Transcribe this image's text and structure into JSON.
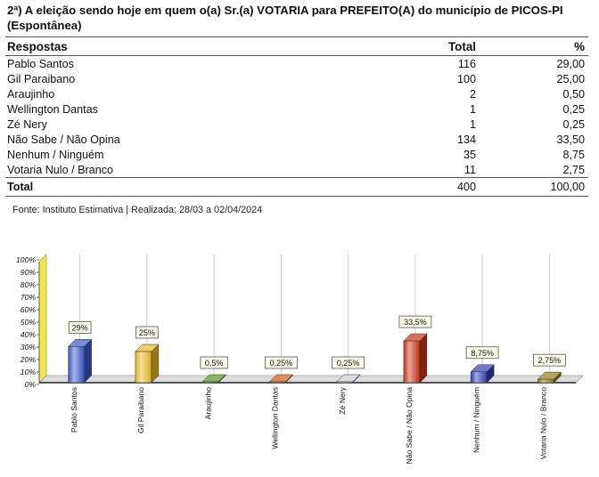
{
  "title": "2ª) A eleição sendo hoje em quem o(a) Sr.(a) VOTARIA para PREFEITO(A) do município de PICOS-PI (Espontânea)",
  "table": {
    "headers": [
      "Respostas",
      "Total",
      "%"
    ],
    "rows": [
      {
        "label": "Pablo Santos",
        "total": "116",
        "pct": "29,00"
      },
      {
        "label": "Gil Paraibano",
        "total": "100",
        "pct": "25,00"
      },
      {
        "label": "Araujinho",
        "total": "2",
        "pct": "0,50"
      },
      {
        "label": "Wellington Dantas",
        "total": "1",
        "pct": "0,25"
      },
      {
        "label": "Zé Nery",
        "total": "1",
        "pct": "0,25"
      },
      {
        "label": "Não Sabe / Não Opina",
        "total": "134",
        "pct": "33,50"
      },
      {
        "label": "Nenhum / Ninguém",
        "total": "35",
        "pct": "8,75"
      },
      {
        "label": "Votaria Nulo / Branco",
        "total": "11",
        "pct": "2,75"
      }
    ],
    "footer": {
      "label": "Total",
      "total": "400",
      "pct": "100,00"
    }
  },
  "source": "Fonte: Instituto Estimativa | Realizada: 28/03 a 02/04/2024",
  "chart_data": {
    "type": "bar",
    "categories": [
      "Pablo Santos",
      "Gil Paraibano",
      "Araujinho",
      "Wellington Dantas",
      "Zé Nery",
      "Não Sabe / Não Opina",
      "Nenhum / Ninguém",
      "Votaria Nulo / Branco"
    ],
    "values": [
      29,
      25,
      0.5,
      0.25,
      0.25,
      33.5,
      8.75,
      2.75
    ],
    "data_labels": [
      "29%",
      "25%",
      "0,5%",
      "0,25%",
      "0,25%",
      "33,5%",
      "8,75%",
      "2,75%"
    ],
    "colors": [
      "#3a56c8",
      "#e6b820",
      "#4f9a1a",
      "#d9561a",
      "#c6cfd9",
      "#c93418",
      "#2f3fb8",
      "#9a7a1a"
    ],
    "yticks": [
      "0%",
      "10%",
      "20%",
      "30%",
      "40%",
      "50%",
      "60%",
      "70%",
      "80%",
      "90%",
      "100%"
    ],
    "ylim": [
      0,
      100
    ],
    "grid": "vertical",
    "legend": "none",
    "wall_color": "#f5e84a"
  }
}
